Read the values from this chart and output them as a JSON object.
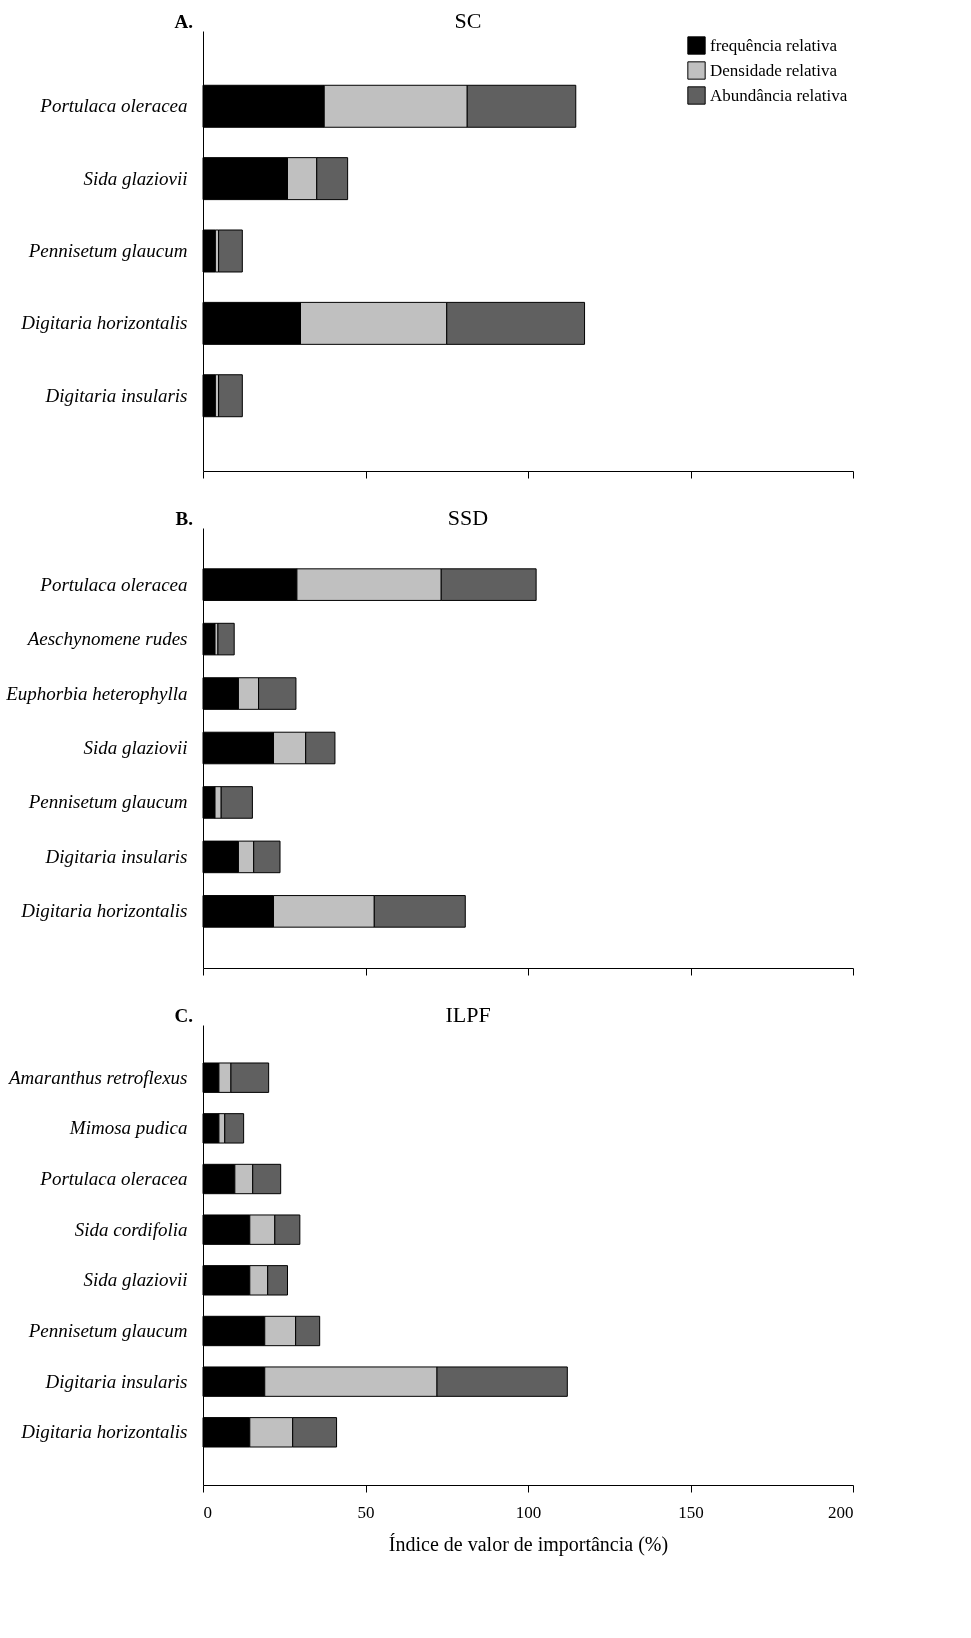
{
  "chart_data": [
    {
      "type": "bar",
      "orientation": "horizontal",
      "stacked": true,
      "title": "SC",
      "annotations": [
        "A."
      ],
      "legend": "top right",
      "tick_labels": "y",
      "categories": [
        "Portulaca oleracea",
        "Sida glaziovii",
        "Pennisetum glaucum",
        "Digitaria horizontalis",
        "Digitaria insularis"
      ],
      "xlim": [
        0,
        200
      ],
      "xticks": [
        0,
        50,
        100,
        150,
        200
      ],
      "series": [
        {
          "name": "frequência relativa",
          "color": "#000000",
          "values": [
            37.3,
            26,
            3.8,
            30,
            3.8
          ]
        },
        {
          "name": "Densidade relativa",
          "color": "#c0c0c0",
          "values": [
            44,
            9,
            1,
            45,
            1
          ]
        },
        {
          "name": "Abundância relativa",
          "color": "#606060",
          "values": [
            33.4,
            9.5,
            7.3,
            42.4,
            7.3
          ]
        }
      ]
    },
    {
      "type": "bar",
      "orientation": "horizontal",
      "stacked": true,
      "title": "SSD",
      "annotations": [
        "B."
      ],
      "tick_labels": "y",
      "categories": [
        "Portulaca oleracea",
        "Aeschynomene rudes",
        "Euphorbia heterophylla",
        "Sida glaziovii",
        "Pennisetum glaucum",
        "Digitaria insularis",
        "Digitaria horizontalis"
      ],
      "xlim": [
        0,
        200
      ],
      "xticks": [
        0,
        50,
        100,
        150,
        200
      ],
      "series": [
        {
          "color": "#000000",
          "values": [
            28.9,
            3.7,
            10.9,
            21.7,
            3.7,
            10.9,
            21.7
          ]
        },
        {
          "color": "#c0c0c0",
          "values": [
            44.4,
            0.9,
            6.2,
            9.9,
            1.9,
            4.7,
            31
          ]
        },
        {
          "color": "#606060",
          "values": [
            29.2,
            5,
            11.5,
            9,
            9.6,
            8.1,
            28
          ]
        }
      ]
    },
    {
      "type": "bar",
      "orientation": "horizontal",
      "stacked": true,
      "title": "ILPF",
      "annotations": [
        "C."
      ],
      "xlabel": "Índice de valor de importância (%)",
      "categories": [
        "Amaranthus retroflexus",
        "Mimosa pudica",
        "Portulaca oleracea",
        "Sida cordifolia",
        "Sida glaziovii",
        "Pennisetum glaucum",
        "Digitaria insularis",
        "Digitaria horizontalis"
      ],
      "xlim": [
        0,
        200
      ],
      "xticks": [
        0,
        50,
        100,
        150,
        200
      ],
      "series": [
        {
          "color": "#000000",
          "values": [
            4.9,
            4.9,
            9.8,
            14.4,
            14.4,
            19,
            19,
            14.4
          ]
        },
        {
          "color": "#c0c0c0",
          "values": [
            3.7,
            1.8,
            5.5,
            7.7,
            5.5,
            9.5,
            53,
            13.2
          ]
        },
        {
          "color": "#606060",
          "values": [
            11.6,
            5.8,
            8.6,
            7.7,
            6.1,
            7.4,
            40.1,
            13.5
          ]
        }
      ]
    }
  ]
}
